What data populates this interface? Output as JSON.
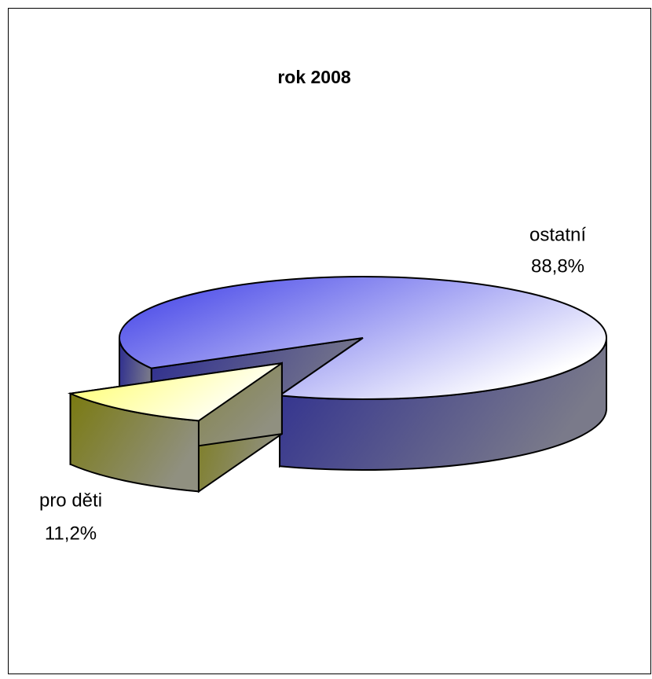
{
  "chart_data": {
    "type": "pie",
    "title": "rok 2008",
    "categories": [
      "ostatní",
      "pro děti"
    ],
    "values": [
      88.8,
      11.2
    ],
    "value_labels": [
      "88,8%",
      "11,2%"
    ],
    "colors": [
      "#3c3ce0",
      "#ffff88"
    ]
  }
}
